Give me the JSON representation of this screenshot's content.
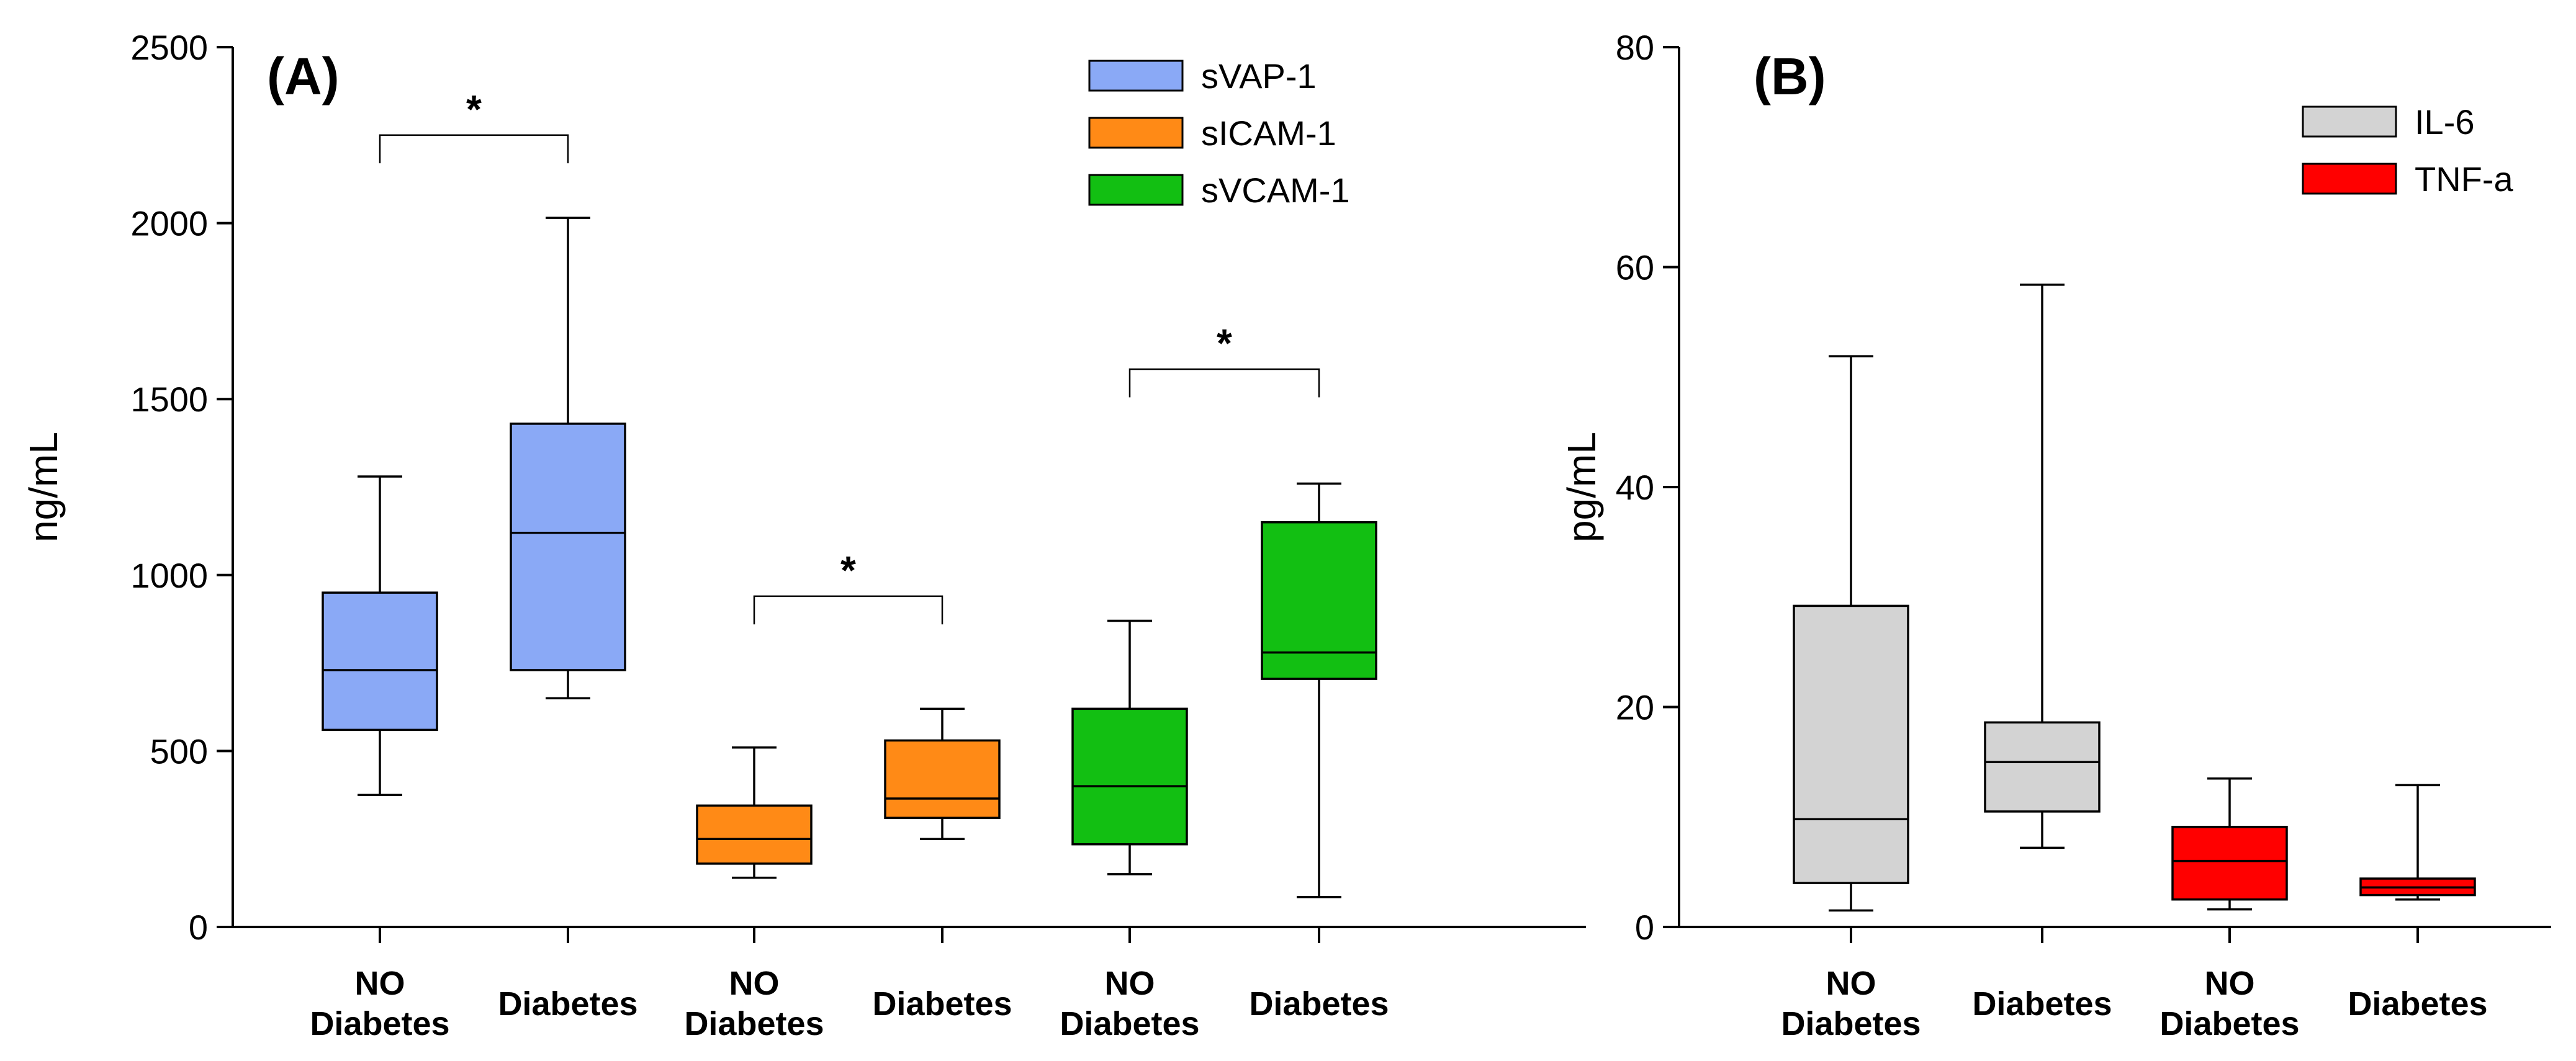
{
  "chart_data": [
    {
      "type": "boxplot",
      "panel_label": "(A)",
      "ylabel": "ng/mL",
      "ylim": [
        0,
        2500
      ],
      "yticks": [
        "0",
        "500",
        "1000",
        "1500",
        "2000",
        "2500"
      ],
      "grid": false,
      "legend": [
        {
          "name": "sVAP-1",
          "color": "#8aa9f6"
        },
        {
          "name": "sICAM-1",
          "color": "#ff8a16"
        },
        {
          "name": "sVCAM-1",
          "color": "#12bf12"
        }
      ],
      "legend_position": "top-right",
      "groups": [
        {
          "label_line1": "NO",
          "label_line2": "Diabetes",
          "series": "sVAP-1",
          "color": "#8aa9f6",
          "min": 375,
          "q1": 560,
          "median": 730,
          "q3": 950,
          "max": 1280
        },
        {
          "label_line1": "Diabetes",
          "label_line2": "",
          "series": "sVAP-1",
          "color": "#8aa9f6",
          "min": 650,
          "q1": 730,
          "median": 1120,
          "q3": 1430,
          "max": 2015
        },
        {
          "label_line1": "NO",
          "label_line2": "Diabetes",
          "series": "sICAM-1",
          "color": "#ff8a16",
          "min": 140,
          "q1": 180,
          "median": 250,
          "q3": 345,
          "max": 510
        },
        {
          "label_line1": "Diabetes",
          "label_line2": "",
          "series": "sICAM-1",
          "color": "#ff8a16",
          "min": 250,
          "q1": 310,
          "median": 365,
          "q3": 530,
          "max": 620
        },
        {
          "label_line1": "NO",
          "label_line2": "Diabetes",
          "series": "sVCAM-1",
          "color": "#12bf12",
          "min": 150,
          "q1": 235,
          "median": 400,
          "q3": 620,
          "max": 870
        },
        {
          "label_line1": "Diabetes",
          "label_line2": "",
          "series": "sVCAM-1",
          "color": "#12bf12",
          "min": 85,
          "q1": 705,
          "median": 780,
          "q3": 1150,
          "max": 1260
        }
      ],
      "significance": [
        {
          "from": 0,
          "to": 1,
          "y": 2250,
          "drop": 80,
          "label": "*"
        },
        {
          "from": 2,
          "to": 3,
          "y": 940,
          "drop": 80,
          "label": "*"
        },
        {
          "from": 4,
          "to": 5,
          "y": 1585,
          "drop": 80,
          "label": "*"
        }
      ]
    },
    {
      "type": "boxplot",
      "panel_label": "(B)",
      "ylabel": "pg/mL",
      "ylim": [
        0,
        80
      ],
      "yticks": [
        "0",
        "20",
        "40",
        "60",
        "80"
      ],
      "grid": false,
      "legend": [
        {
          "name": "IL-6",
          "color": "#d3d3d3"
        },
        {
          "name": "TNF-a",
          "color": "#ff0000"
        }
      ],
      "legend_position": "top-right",
      "groups": [
        {
          "label_line1": "NO",
          "label_line2": "Diabetes",
          "series": "IL-6",
          "color": "#d3d3d3",
          "min": 1.5,
          "q1": 4,
          "median": 9.8,
          "q3": 29.2,
          "max": 51.9
        },
        {
          "label_line1": "Diabetes",
          "label_line2": "",
          "series": "IL-6",
          "color": "#d3d3d3",
          "min": 7.2,
          "q1": 10.5,
          "median": 15,
          "q3": 18.6,
          "max": 58.4
        },
        {
          "label_line1": "NO",
          "label_line2": "Diabetes",
          "series": "TNF-a",
          "color": "#ff0000",
          "min": 1.6,
          "q1": 2.5,
          "median": 6,
          "q3": 9.1,
          "max": 13.5
        },
        {
          "label_line1": "Diabetes",
          "label_line2": "",
          "series": "TNF-a",
          "color": "#ff0000",
          "min": 2.5,
          "q1": 2.9,
          "median": 3.6,
          "q3": 4.4,
          "max": 12.9
        }
      ],
      "significance": []
    }
  ]
}
